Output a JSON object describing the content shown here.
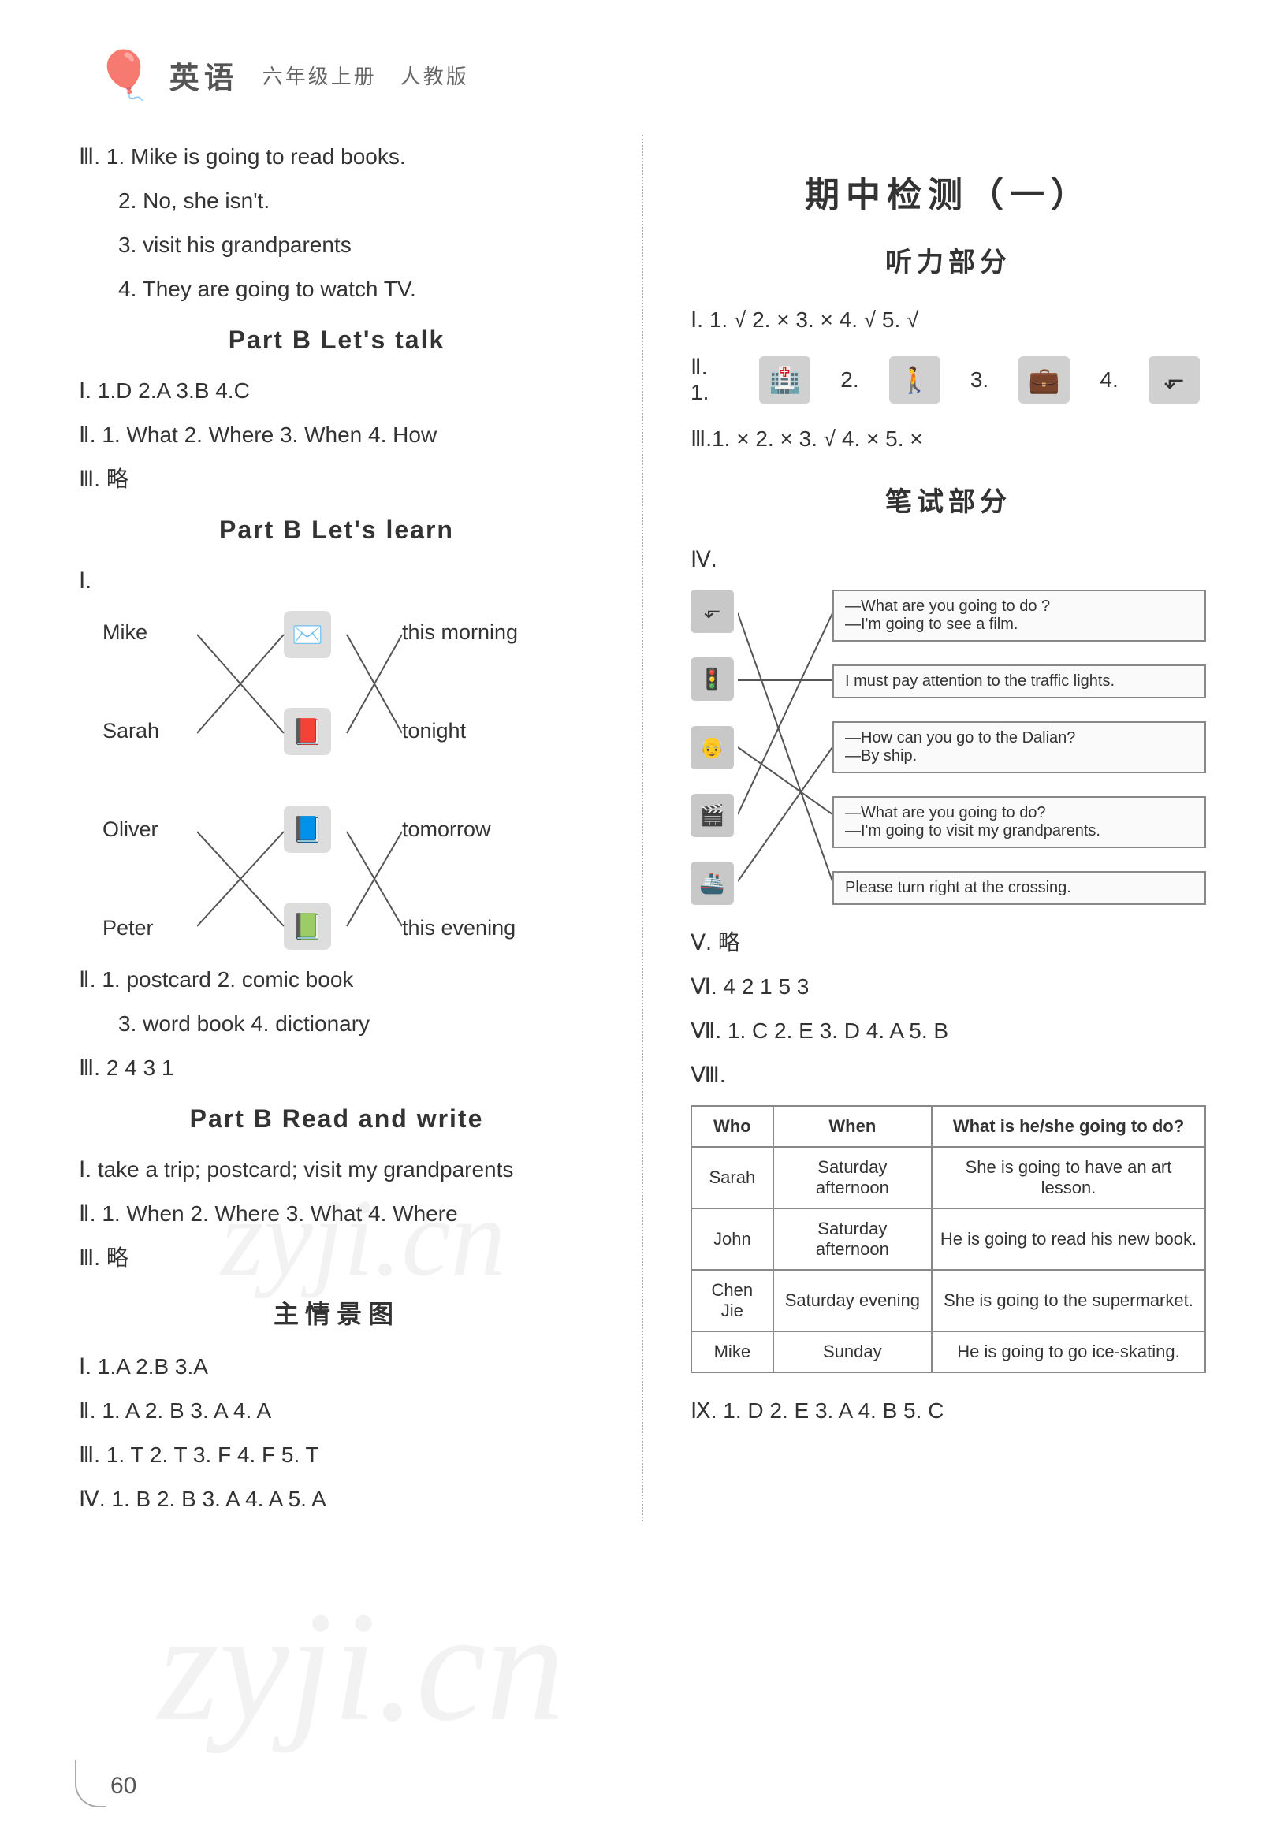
{
  "header": {
    "subject": "英语",
    "grade": "六年级上册",
    "edition": "人教版"
  },
  "left": {
    "iii_items": [
      "Ⅲ. 1. Mike is going to read books.",
      "2. No, she isn't.",
      "3. visit his grandparents",
      "4. They are going to watch TV."
    ],
    "pb_talk_title": "Part B  Let's talk",
    "pb_talk_i": "Ⅰ. 1.D   2.A   3.B   4.C",
    "pb_talk_ii": "Ⅱ. 1. What   2. Where   3. When   4. How",
    "pb_talk_iii": "Ⅲ. 略",
    "pb_learn_title": "Part B  Let's learn",
    "pb_learn_i": "Ⅰ.",
    "match": {
      "left": [
        "Mike",
        "Sarah",
        "Oliver",
        "Peter"
      ],
      "right": [
        "this morning",
        "tonight",
        "tomorrow",
        "this evening"
      ]
    },
    "pb_learn_ii_1": "Ⅱ. 1. postcard   2. comic book",
    "pb_learn_ii_2": "3. word book  4. dictionary",
    "pb_learn_iii": "Ⅲ. 2    4   3   1",
    "pb_rw_title": "Part B  Read and write",
    "pb_rw_i": "Ⅰ. take a trip; postcard; visit my grandparents",
    "pb_rw_ii": "Ⅱ. 1. When   2. Where   3. What   4. Where",
    "pb_rw_iii": "Ⅲ. 略",
    "scene_title": "主情景图",
    "scene_i": "Ⅰ. 1.A   2.B   3.A",
    "scene_ii": "Ⅱ. 1. A   2. B   3. A   4. A",
    "scene_iii": "Ⅲ. 1. T   2. T   3. F   4. F   5. T",
    "scene_iv": "Ⅳ. 1. B   2. B   3. A   4. A   5. A"
  },
  "right": {
    "exam_title": "期中检测（一）",
    "listen_title": "听力部分",
    "listen_i": "Ⅰ. 1. √   2. ×   3. ×   4. √   5. √",
    "listen_ii_prefix": "Ⅱ. 1.",
    "listen_ii_n2": "2.",
    "listen_ii_n3": "3.",
    "listen_ii_n4": "4.",
    "listen_iii": "Ⅲ.1. ×   2. ×   3. √   4. ×   5. ×",
    "write_title": "笔试部分",
    "write_iv": "Ⅳ.",
    "iv_texts": [
      "—What are you going to do ?\n—I'm going to see a film.",
      "I must pay attention to the traffic lights.",
      "—How can you go to the Dalian?\n—By ship.",
      "—What are you going to do?\n—I'm going to visit my grandparents.",
      "Please turn right at the crossing."
    ],
    "write_v": "Ⅴ. 略",
    "write_vi": "Ⅵ. 4   2   1   5   3",
    "write_vii": "Ⅶ. 1. C   2. E   3. D   4. A   5. B",
    "write_viii": "Ⅷ.",
    "table_headers": [
      "Who",
      "When",
      "What is he/she going to do?"
    ],
    "table_rows": [
      [
        "Sarah",
        "Saturday afternoon",
        "She is going to have an art lesson."
      ],
      [
        "John",
        "Saturday afternoon",
        "He is going to read his new book."
      ],
      [
        "Chen Jie",
        "Saturday evening",
        "She is going to the supermarket."
      ],
      [
        "Mike",
        "Sunday",
        "He is going to go ice-skating."
      ]
    ],
    "write_ix": "Ⅸ. 1. D   2. E   3. A   4. B   5. C"
  },
  "page_num": "60",
  "colors": {
    "text": "#333333",
    "border": "#888888",
    "bg": "#ffffff",
    "icon_bg": "#d0d0d0"
  }
}
